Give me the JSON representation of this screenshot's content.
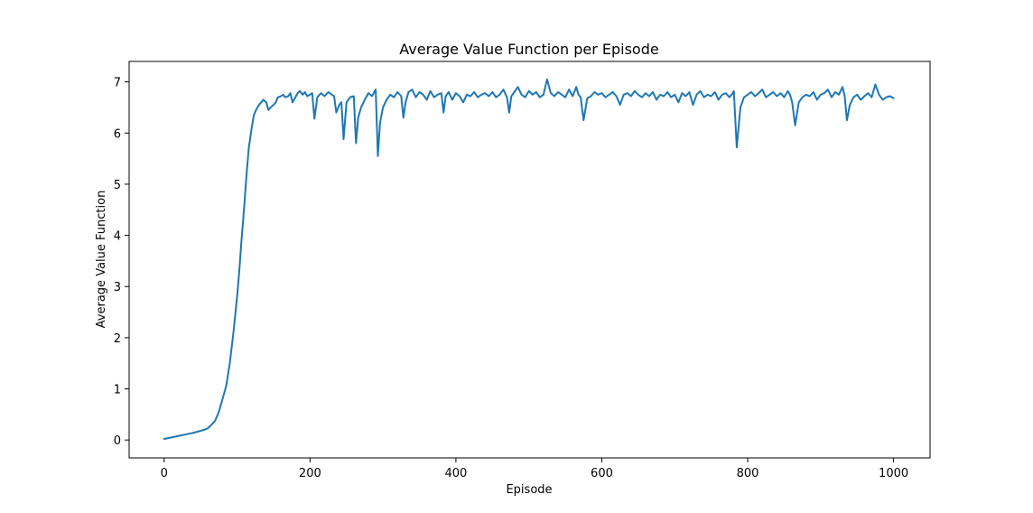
{
  "chart_data": {
    "type": "line",
    "title": "Average Value Function per Episode",
    "xlabel": "Episode",
    "ylabel": "Average Value Function",
    "xlim": [
      -48,
      1050
    ],
    "ylim": [
      -0.35,
      7.4
    ],
    "xticks": [
      0,
      200,
      400,
      600,
      800,
      1000
    ],
    "yticks": [
      0,
      1,
      2,
      3,
      4,
      5,
      6,
      7
    ],
    "grid": false,
    "legend": "none",
    "series": [
      {
        "color": "#1f77b4",
        "x": [
          0,
          10,
          20,
          30,
          40,
          50,
          55,
          60,
          65,
          70,
          75,
          80,
          85,
          90,
          95,
          100,
          103,
          106,
          110,
          113,
          116,
          120,
          123,
          126,
          130,
          133,
          136,
          140,
          143,
          146,
          150,
          153,
          156,
          160,
          163,
          166,
          170,
          173,
          176,
          180,
          183,
          186,
          190,
          193,
          196,
          200,
          203,
          206,
          210,
          215,
          220,
          225,
          230,
          233,
          236,
          240,
          243,
          246,
          250,
          255,
          260,
          263,
          266,
          270,
          275,
          280,
          285,
          290,
          293,
          296,
          300,
          305,
          310,
          315,
          320,
          325,
          328,
          331,
          335,
          340,
          345,
          350,
          355,
          360,
          365,
          370,
          375,
          380,
          383,
          386,
          390,
          395,
          400,
          405,
          410,
          415,
          420,
          425,
          430,
          435,
          440,
          445,
          450,
          455,
          460,
          465,
          470,
          473,
          476,
          480,
          485,
          490,
          495,
          500,
          505,
          510,
          515,
          520,
          525,
          530,
          535,
          540,
          545,
          550,
          555,
          560,
          565,
          568,
          571,
          575,
          580,
          585,
          590,
          595,
          600,
          605,
          610,
          615,
          620,
          625,
          630,
          635,
          640,
          645,
          650,
          655,
          660,
          665,
          670,
          675,
          680,
          685,
          690,
          695,
          700,
          705,
          710,
          715,
          720,
          725,
          730,
          735,
          740,
          745,
          750,
          755,
          760,
          765,
          770,
          775,
          778,
          781,
          785,
          790,
          795,
          800,
          805,
          810,
          815,
          820,
          825,
          830,
          835,
          840,
          845,
          850,
          855,
          858,
          861,
          865,
          870,
          875,
          880,
          885,
          890,
          895,
          900,
          905,
          910,
          915,
          920,
          925,
          930,
          933,
          936,
          940,
          945,
          950,
          955,
          960,
          965,
          970,
          975,
          980,
          985,
          990,
          995,
          1000
        ],
        "y": [
          0.02,
          0.05,
          0.08,
          0.11,
          0.14,
          0.18,
          0.2,
          0.23,
          0.3,
          0.38,
          0.55,
          0.8,
          1.05,
          1.5,
          2.1,
          2.8,
          3.3,
          3.9,
          4.6,
          5.2,
          5.7,
          6.1,
          6.35,
          6.45,
          6.55,
          6.6,
          6.65,
          6.6,
          6.45,
          6.5,
          6.55,
          6.6,
          6.7,
          6.72,
          6.75,
          6.7,
          6.72,
          6.78,
          6.6,
          6.7,
          6.78,
          6.82,
          6.75,
          6.8,
          6.72,
          6.75,
          6.78,
          6.28,
          6.7,
          6.78,
          6.72,
          6.8,
          6.75,
          6.72,
          6.4,
          6.55,
          6.6,
          5.88,
          6.6,
          6.7,
          6.72,
          5.8,
          6.3,
          6.5,
          6.65,
          6.78,
          6.72,
          6.85,
          5.55,
          6.2,
          6.5,
          6.65,
          6.75,
          6.7,
          6.8,
          6.72,
          6.3,
          6.6,
          6.8,
          6.85,
          6.7,
          6.8,
          6.75,
          6.65,
          6.82,
          6.7,
          6.75,
          6.78,
          6.4,
          6.72,
          6.8,
          6.65,
          6.78,
          6.72,
          6.6,
          6.75,
          6.72,
          6.8,
          6.7,
          6.75,
          6.78,
          6.72,
          6.8,
          6.7,
          6.75,
          6.85,
          6.7,
          6.4,
          6.72,
          6.8,
          6.9,
          6.75,
          6.7,
          6.82,
          6.75,
          6.8,
          6.7,
          6.75,
          7.05,
          6.78,
          6.72,
          6.8,
          6.75,
          6.7,
          6.85,
          6.72,
          6.9,
          6.75,
          6.7,
          6.25,
          6.68,
          6.72,
          6.8,
          6.75,
          6.78,
          6.7,
          6.75,
          6.8,
          6.72,
          6.55,
          6.75,
          6.78,
          6.72,
          6.82,
          6.75,
          6.7,
          6.78,
          6.72,
          6.8,
          6.65,
          6.75,
          6.72,
          6.8,
          6.7,
          6.75,
          6.6,
          6.78,
          6.72,
          6.8,
          6.55,
          6.75,
          6.82,
          6.7,
          6.75,
          6.72,
          6.8,
          6.65,
          6.75,
          6.78,
          6.7,
          6.75,
          6.82,
          5.72,
          6.5,
          6.7,
          6.75,
          6.8,
          6.72,
          6.78,
          6.85,
          6.7,
          6.75,
          6.8,
          6.72,
          6.78,
          6.7,
          6.82,
          6.75,
          6.6,
          6.15,
          6.6,
          6.7,
          6.75,
          6.72,
          6.8,
          6.65,
          6.75,
          6.78,
          6.85,
          6.7,
          6.8,
          6.75,
          6.9,
          6.72,
          6.25,
          6.55,
          6.7,
          6.75,
          6.65,
          6.72,
          6.78,
          6.7,
          6.95,
          6.75,
          6.65,
          6.7,
          6.72,
          6.68
        ]
      }
    ]
  }
}
